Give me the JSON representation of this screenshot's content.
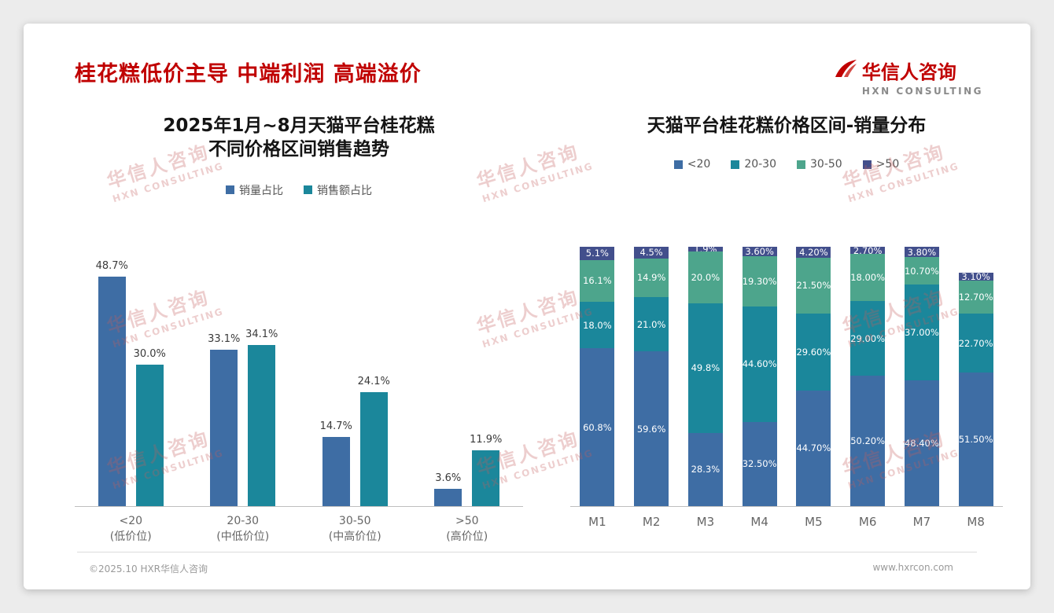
{
  "header": {
    "title": "桂花糕低价主导 中端利润 高端溢价",
    "logo": {
      "cn": "华信人咨询",
      "en": "HXN CONSULTING"
    }
  },
  "watermark": {
    "cn": "华信人咨询",
    "en": "HXN CONSULTING"
  },
  "footer": {
    "copyright": "©2025.10 HXR华信人咨询",
    "website": "www.hxrcon.com"
  },
  "colors": {
    "title_red": "#c00000",
    "blue": "#3e6da4",
    "teal": "#1b879b",
    "green": "#4da58c",
    "navy": "#424f8c"
  },
  "chart_data": [
    {
      "type": "bar",
      "stacked": false,
      "title": "2025年1月~8月天猫平台桂花糕\n不同价格区间销售趋势",
      "title_lines": [
        "2025年1月~8月天猫平台桂花糕",
        "不同价格区间销售趋势"
      ],
      "categories": [
        "<20",
        "20-30",
        "30-50",
        ">50"
      ],
      "category_sublabels": [
        "(低价位)",
        "(中低价位)",
        "(中高价位)",
        "(高价位)"
      ],
      "series": [
        {
          "name": "销量占比",
          "color_key": "blue",
          "values": [
            48.7,
            33.1,
            14.7,
            3.6
          ],
          "labels": [
            "48.7%",
            "33.1%",
            "14.7%",
            "3.6%"
          ]
        },
        {
          "name": "销售额占比",
          "color_key": "teal",
          "values": [
            30.0,
            34.1,
            24.1,
            11.9
          ],
          "labels": [
            "30.0%",
            "34.1%",
            "24.1%",
            "11.9%"
          ]
        }
      ],
      "ylim": [
        0,
        55
      ],
      "grid": false,
      "legend_position": "top"
    },
    {
      "type": "bar",
      "stacked": true,
      "title": "天猫平台桂花糕价格区间-销量分布",
      "categories": [
        "M1",
        "M2",
        "M3",
        "M4",
        "M5",
        "M6",
        "M7",
        "M8"
      ],
      "series": [
        {
          "name": "<20",
          "color_key": "blue",
          "values": [
            60.8,
            59.6,
            28.3,
            32.5,
            44.7,
            50.2,
            48.4,
            51.5
          ],
          "labels": [
            "60.8%",
            "59.6%",
            "28.3%",
            "32.50%",
            "44.70%",
            "50.20%",
            "48.40%",
            "51.50%"
          ]
        },
        {
          "name": "20-30",
          "color_key": "teal",
          "values": [
            18.0,
            21.0,
            49.8,
            44.6,
            29.6,
            29.0,
            37.0,
            22.7
          ],
          "labels": [
            "18.0%",
            "21.0%",
            "49.8%",
            "44.60%",
            "29.60%",
            "29.00%",
            "37.00%",
            "22.70%"
          ]
        },
        {
          "name": "30-50",
          "color_key": "green",
          "values": [
            16.1,
            14.9,
            20.0,
            19.3,
            21.5,
            18.0,
            10.7,
            12.7
          ],
          "labels": [
            "16.1%",
            "14.9%",
            "20.0%",
            "19.30%",
            "21.50%",
            "18.00%",
            "10.70%",
            "12.70%"
          ]
        },
        {
          "name": ">50",
          "color_key": "navy",
          "values": [
            5.1,
            4.5,
            1.9,
            3.6,
            4.2,
            2.7,
            3.8,
            3.1
          ],
          "labels": [
            "5.1%",
            "4.5%",
            "1.9%",
            "3.60%",
            "4.20%",
            "2.70%",
            "3.80%",
            "3.10%"
          ]
        }
      ],
      "ylim": [
        0,
        100
      ],
      "grid": false,
      "legend_position": "top"
    }
  ]
}
